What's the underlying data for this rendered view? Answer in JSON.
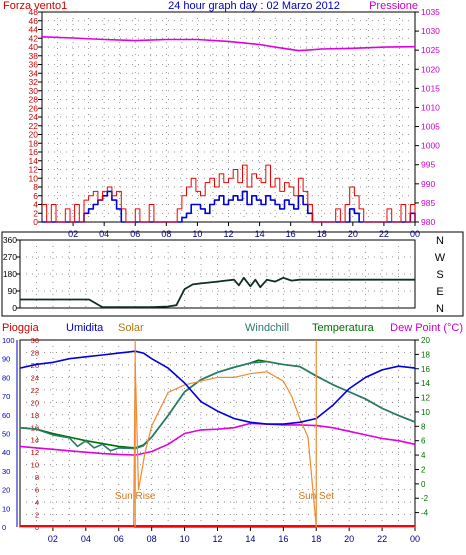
{
  "chart_data": [
    {
      "type": "line",
      "panel": "wind-pressure",
      "title": "24 hour graph day : 02 Marzo 2012",
      "left_axis_label": "Forza vento1",
      "right_axis_label": "Pressione",
      "x_tick_labels": [
        "02",
        "04",
        "06",
        "08",
        "10",
        "12",
        "14",
        "16",
        "18",
        "20",
        "22",
        "00"
      ],
      "left_ticks": [
        "0",
        "2",
        "4",
        "6",
        "8",
        "10",
        "12",
        "14",
        "16",
        "18",
        "20",
        "22",
        "24",
        "26",
        "28",
        "30",
        "32",
        "34",
        "36",
        "38",
        "40",
        "42",
        "44",
        "46",
        "48"
      ],
      "right_ticks": [
        "980",
        "985",
        "990",
        "995",
        "1000",
        "1005",
        "1010",
        "1015",
        "1020",
        "1025",
        "1030",
        "1035"
      ],
      "ylim_left": [
        0,
        48
      ],
      "ylim_right": [
        980,
        1035
      ],
      "x_range_hours": [
        0,
        24
      ],
      "series": [
        {
          "key": "pressure",
          "axis": "right",
          "color": "#e000e0",
          "x": [
            0,
            2,
            4,
            6,
            8,
            10,
            12,
            14,
            15,
            16,
            16.5,
            17,
            18,
            20,
            22,
            24
          ],
          "values": [
            1028.5,
            1028.2,
            1027.8,
            1027.5,
            1027.8,
            1027.8,
            1027.3,
            1026.5,
            1025.8,
            1025.2,
            1024.9,
            1025.0,
            1025.3,
            1025.5,
            1025.8,
            1025.9
          ]
        },
        {
          "key": "wind_avg",
          "axis": "left",
          "color": "#0000e0",
          "x": [
            0,
            0.3,
            0.6,
            0.9,
            1.2,
            1.5,
            1.8,
            2.1,
            2.4,
            2.7,
            3,
            3.3,
            3.6,
            3.9,
            4.2,
            4.5,
            4.8,
            5.1,
            5.4,
            5.7,
            6,
            6.3,
            6.6,
            6.9,
            7.2,
            7.5,
            7.8,
            8.1,
            8.4,
            8.7,
            9,
            9.3,
            9.6,
            9.9,
            10.2,
            10.5,
            10.8,
            11.1,
            11.4,
            11.7,
            12,
            12.3,
            12.6,
            12.9,
            13.2,
            13.5,
            13.8,
            14.1,
            14.4,
            14.7,
            15,
            15.3,
            15.6,
            15.9,
            16.2,
            16.5,
            16.8,
            17.1,
            17.4,
            17.7,
            18,
            18.3,
            18.6,
            18.9,
            19.2,
            19.5,
            19.8,
            20.1,
            20.4,
            20.7,
            21,
            21.3,
            21.6,
            21.9,
            22.2,
            22.5,
            22.8,
            23.1,
            23.4,
            23.7,
            24
          ],
          "values": [
            0,
            0,
            0,
            0,
            0,
            0,
            0,
            0,
            0,
            2,
            3,
            4,
            5,
            6,
            7,
            5,
            3,
            0,
            0,
            0,
            0,
            0,
            0,
            0,
            0,
            0,
            0,
            0,
            0,
            0,
            1,
            2,
            4,
            4,
            3,
            2,
            4,
            5,
            6,
            4,
            5,
            6,
            5,
            7,
            4,
            6,
            5,
            4,
            6,
            5,
            4,
            3,
            5,
            4,
            3,
            6,
            4,
            2,
            0,
            0,
            0,
            0,
            0,
            0,
            0,
            0,
            3,
            2,
            0,
            0,
            0,
            0,
            0,
            0,
            0,
            0,
            0,
            0,
            0,
            2,
            0
          ]
        },
        {
          "key": "wind_gust",
          "axis": "left",
          "color": "#ee0000",
          "x": [
            0,
            0.3,
            0.6,
            0.9,
            1.2,
            1.5,
            1.8,
            2.1,
            2.4,
            2.7,
            3,
            3.3,
            3.6,
            3.9,
            4.2,
            4.5,
            4.8,
            5.1,
            5.4,
            5.7,
            6,
            6.3,
            6.6,
            6.9,
            7.2,
            7.5,
            7.8,
            8.1,
            8.4,
            8.7,
            9,
            9.3,
            9.6,
            9.9,
            10.2,
            10.5,
            10.8,
            11.1,
            11.4,
            11.7,
            12,
            12.3,
            12.6,
            12.9,
            13.2,
            13.5,
            13.8,
            14.1,
            14.4,
            14.7,
            15,
            15.3,
            15.6,
            15.9,
            16.2,
            16.5,
            16.8,
            17.1,
            17.4,
            17.7,
            18,
            18.3,
            18.6,
            18.9,
            19.2,
            19.5,
            19.8,
            20.1,
            20.4,
            20.7,
            21,
            21.3,
            21.6,
            21.9,
            22.2,
            22.5,
            22.8,
            23.1,
            23.4,
            23.7,
            24
          ],
          "values": [
            4,
            0,
            4,
            0,
            0,
            3,
            0,
            4,
            0,
            5,
            6,
            7,
            5,
            7,
            8,
            6,
            7,
            3,
            0,
            0,
            3,
            0,
            0,
            4,
            0,
            0,
            0,
            0,
            0,
            3,
            6,
            8,
            10,
            7,
            6,
            9,
            10,
            8,
            11,
            9,
            10,
            12,
            9,
            13,
            8,
            11,
            10,
            9,
            13,
            8,
            10,
            7,
            9,
            8,
            6,
            10,
            7,
            4,
            0,
            0,
            0,
            0,
            0,
            3,
            0,
            4,
            8,
            6,
            3,
            0,
            0,
            0,
            0,
            0,
            3,
            0,
            0,
            4,
            0,
            4,
            0
          ]
        }
      ]
    },
    {
      "type": "line",
      "panel": "wind-direction",
      "left_ticks": [
        "0",
        "90",
        "180",
        "270",
        "360"
      ],
      "right_ticks": [
        "N",
        "E",
        "S",
        "W",
        "N"
      ],
      "ylim": [
        0,
        360
      ],
      "series": [
        {
          "key": "direction",
          "color": "#0f3020",
          "x": [
            0,
            3.5,
            4.2,
            5,
            6,
            7,
            8,
            9,
            9.5,
            10,
            10.5,
            11,
            11.5,
            12,
            12.5,
            13,
            13.3,
            13.6,
            14,
            14.3,
            14.6,
            15,
            15.5,
            16,
            16.5,
            17,
            18,
            20,
            22,
            24
          ],
          "values": [
            45,
            45,
            45,
            5,
            5,
            5,
            5,
            8,
            15,
            100,
            125,
            130,
            135,
            140,
            145,
            150,
            120,
            160,
            115,
            150,
            110,
            150,
            140,
            160,
            145,
            150,
            150,
            150,
            150,
            150
          ]
        }
      ]
    },
    {
      "type": "line",
      "panel": "temperature-humidity",
      "labels": {
        "rain": "Pioggia",
        "humidity": "Umidita",
        "solar": "Solar",
        "windchill": "Windchill",
        "temperature": "Temperatura",
        "dewpoint": "Dew Point (°C)"
      },
      "annotations": {
        "sunrise": "Sun Rise",
        "sunset": "Sun Set",
        "sunrise_hour": 7,
        "sunset_hour": 18
      },
      "left_outer_ticks": [
        "0",
        "10",
        "20",
        "30",
        "40",
        "50",
        "60",
        "70",
        "80",
        "90",
        "100"
      ],
      "left_inner_ticks": [
        "0",
        "2",
        "4",
        "6",
        "8",
        "10",
        "12",
        "14",
        "16",
        "18",
        "20",
        "22",
        "24",
        "26",
        "28",
        "30"
      ],
      "right_ticks": [
        "-4",
        "-2",
        "0",
        "2",
        "4",
        "6",
        "8",
        "10",
        "12",
        "14",
        "16",
        "18",
        "20"
      ],
      "x_tick_labels": [
        "02",
        "04",
        "06",
        "08",
        "10",
        "12",
        "14",
        "16",
        "18",
        "20",
        "22",
        "00"
      ],
      "ylim_humidity": [
        0,
        100
      ],
      "ylim_temp": [
        -6,
        20
      ],
      "series": [
        {
          "key": "humidity",
          "axis": "humidity",
          "color": "#0000e0",
          "x": [
            0,
            1,
            2,
            3,
            4,
            5,
            6,
            7,
            7.5,
            8,
            9,
            10,
            11,
            12,
            13,
            14,
            15,
            16,
            17,
            18,
            19,
            20,
            21,
            22,
            23,
            24
          ],
          "values": [
            85,
            87,
            88,
            90,
            91,
            92,
            93,
            94,
            93,
            90,
            85,
            77,
            67,
            62,
            58,
            56,
            55,
            55,
            56,
            58,
            65,
            74,
            80,
            84,
            86,
            85
          ]
        },
        {
          "key": "temperature",
          "axis": "temp",
          "color": "#007000",
          "x": [
            0,
            1,
            2,
            3,
            4,
            5,
            6,
            7,
            7.5,
            8,
            9,
            10,
            11,
            12,
            13,
            14,
            14.5,
            15,
            16,
            17,
            18,
            19,
            20,
            21,
            22,
            23,
            24
          ],
          "values": [
            7.8,
            7.6,
            7,
            6.5,
            6,
            5.6,
            5.2,
            5,
            5.4,
            6.5,
            9.5,
            12.8,
            14.5,
            15.5,
            16.2,
            16.8,
            17.2,
            17,
            16.6,
            16.3,
            15,
            13.8,
            12.8,
            11.8,
            10.5,
            9.5,
            8.6
          ]
        },
        {
          "key": "dewpoint",
          "axis": "temp",
          "color": "#e000e0",
          "x": [
            0,
            1,
            2,
            3,
            4,
            5,
            6,
            7,
            8,
            9,
            10,
            11,
            12,
            13,
            14,
            15,
            16,
            17,
            18,
            19,
            20,
            21,
            22,
            23,
            24
          ],
          "values": [
            5.2,
            5,
            4.8,
            4.6,
            4.4,
            4.2,
            4.1,
            4,
            4.5,
            5.5,
            7,
            7.5,
            7.6,
            7.8,
            8.4,
            8.3,
            8.2,
            8.2,
            8.1,
            7.8,
            7.3,
            6.8,
            6.3,
            6,
            5.5
          ]
        },
        {
          "key": "windchill",
          "axis": "temp",
          "color": "#2a7a6a",
          "x": [
            0,
            1,
            2,
            3,
            3.5,
            4,
            4.5,
            5,
            5.5,
            6,
            7,
            7.5,
            8,
            9,
            10,
            11,
            12,
            13,
            14,
            15,
            16,
            17,
            18,
            19,
            20,
            21,
            22,
            23,
            24
          ],
          "values": [
            7.8,
            7.6,
            6.8,
            6.4,
            5.2,
            6,
            5,
            5.5,
            4.6,
            5,
            4.9,
            5.3,
            6.5,
            9.5,
            12.8,
            14.5,
            15.5,
            16.2,
            16.8,
            17,
            16.6,
            16.3,
            15,
            13.8,
            12.8,
            11.8,
            10.5,
            9.5,
            8.6
          ]
        },
        {
          "key": "solar",
          "axis": "humidity",
          "color": "#f08a30",
          "x": [
            0,
            6.9,
            7,
            7.2,
            7.6,
            8,
            9,
            10,
            11,
            12,
            13,
            14,
            15,
            16,
            16.5,
            17,
            17.5,
            18,
            24
          ],
          "values": [
            0,
            0,
            88,
            20,
            40,
            54,
            72,
            76,
            78,
            80,
            80,
            82,
            83,
            78,
            70,
            58,
            48,
            0,
            0
          ]
        },
        {
          "key": "rain",
          "axis": "humidity",
          "color": "#ff0000",
          "x": [
            0,
            24
          ],
          "values": [
            0,
            0
          ]
        }
      ]
    }
  ]
}
